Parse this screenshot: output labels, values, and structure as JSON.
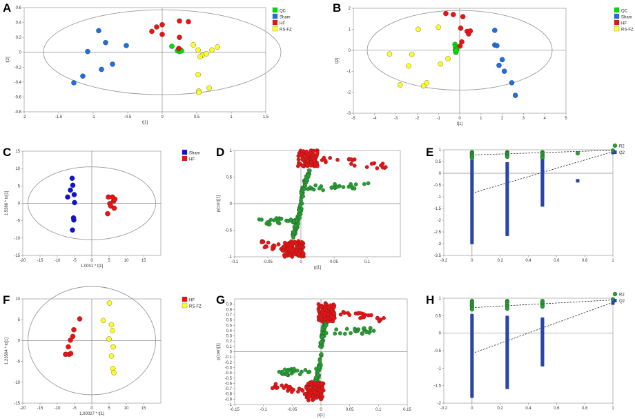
{
  "figure": {
    "panel_letters": [
      "A",
      "B",
      "C",
      "D",
      "E",
      "F",
      "G",
      "H"
    ]
  },
  "colors": {
    "QC": "#00e000",
    "Sham": "#1f6fe0",
    "HF": "#ee1111",
    "RS-FZ": "#ffff22",
    "Sham2": "#1010dd",
    "green": "#22a030",
    "red": "#ee1111",
    "R2": "#22a030",
    "Q2": "#2a45a8"
  },
  "chart_data": [
    {
      "panel": "A",
      "type": "scatter",
      "xlabel": "t[1]",
      "ylabel": "t[2]",
      "xlim": [
        -2,
        1.5
      ],
      "ylim": [
        -0.8,
        0.6
      ],
      "xticks": [
        -2,
        -1.5,
        -1,
        -0.5,
        0,
        0.5,
        1,
        1.5
      ],
      "yticks": [
        -0.8,
        -0.6,
        -0.4,
        -0.2,
        0,
        0.2,
        0.4,
        0.6
      ],
      "ellipse": {
        "cx": 0,
        "cy": 0,
        "rx": 1.72,
        "ry": 0.57
      },
      "legend": [
        "QC",
        "Sham",
        "HF",
        "RS-FZ"
      ],
      "series": [
        {
          "name": "QC",
          "points": [
            [
              0.14,
              0.08
            ],
            [
              0.22,
              0.02
            ],
            [
              0.25,
              0.01
            ],
            [
              0.27,
              0.03
            ],
            [
              0.24,
              0.05
            ],
            [
              0.28,
              0.02
            ]
          ]
        },
        {
          "name": "Sham",
          "points": [
            [
              -1.28,
              -0.41
            ],
            [
              -1.15,
              -0.32
            ],
            [
              -1.08,
              0.01
            ],
            [
              -0.92,
              0.29
            ],
            [
              -0.88,
              -0.23
            ],
            [
              -0.82,
              0.13
            ],
            [
              -0.72,
              -0.16
            ],
            [
              -0.52,
              0.09
            ]
          ]
        },
        {
          "name": "HF",
          "points": [
            [
              -0.15,
              0.28
            ],
            [
              -0.08,
              0.34
            ],
            [
              0.0,
              0.37
            ],
            [
              0.0,
              0.24
            ],
            [
              0.25,
              0.42
            ],
            [
              0.25,
              0.2
            ],
            [
              0.38,
              0.41
            ],
            [
              0.24,
              0.05
            ]
          ]
        },
        {
          "name": "RS-FZ",
          "points": [
            [
              0.45,
              0.1
            ],
            [
              0.52,
              0.03
            ],
            [
              0.58,
              -0.04
            ],
            [
              0.52,
              -0.3
            ],
            [
              0.55,
              -0.06
            ],
            [
              0.64,
              -0.02
            ],
            [
              0.72,
              0.03
            ],
            [
              0.8,
              0.07
            ],
            [
              0.53,
              -0.52
            ],
            [
              0.53,
              -0.54
            ],
            [
              0.68,
              -0.48
            ]
          ]
        }
      ]
    },
    {
      "panel": "B",
      "type": "scatter",
      "xlabel": "t[1]",
      "ylabel": "t[2]",
      "xlim": [
        -5,
        5
      ],
      "ylim": [
        -3,
        2
      ],
      "xticks": [
        -5,
        -4,
        -3,
        -2,
        -1,
        0,
        1,
        2,
        3,
        4,
        5
      ],
      "yticks": [
        -3,
        -2,
        -1,
        0,
        1,
        2
      ],
      "ellipse": {
        "cx": 0,
        "cy": 0,
        "rx": 4.35,
        "ry": 1.9
      },
      "legend": [
        "QC",
        "Sham",
        "HF",
        "RS-FZ"
      ],
      "series": [
        {
          "name": "QC",
          "points": [
            [
              -0.22,
              0.28
            ],
            [
              -0.2,
              0.15
            ],
            [
              -0.2,
              0.0
            ],
            [
              -0.18,
              -0.1
            ],
            [
              -0.15,
              0.05
            ],
            [
              -0.16,
              -0.02
            ]
          ]
        },
        {
          "name": "Sham",
          "points": [
            [
              1.65,
              0.95
            ],
            [
              1.65,
              0.25
            ],
            [
              1.75,
              0.22
            ],
            [
              1.85,
              -0.72
            ],
            [
              2.0,
              -0.45
            ],
            [
              2.1,
              -1.0
            ],
            [
              2.45,
              -1.55
            ],
            [
              2.62,
              -2.15
            ]
          ]
        },
        {
          "name": "HF",
          "points": [
            [
              -0.65,
              1.75
            ],
            [
              -0.3,
              1.7
            ],
            [
              0.15,
              1.6
            ],
            [
              0.05,
              1.05
            ],
            [
              0.1,
              0.4
            ],
            [
              0.35,
              0.9
            ],
            [
              0.42,
              0.78
            ],
            [
              0.5,
              0.92
            ],
            [
              0.02,
              0.2
            ]
          ]
        },
        {
          "name": "RS-FZ",
          "points": [
            [
              -3.3,
              -0.18
            ],
            [
              -2.8,
              -1.65
            ],
            [
              -2.4,
              -0.75
            ],
            [
              -2.25,
              -0.2
            ],
            [
              -1.95,
              1.0
            ],
            [
              -1.7,
              -1.7
            ],
            [
              -1.55,
              -1.55
            ],
            [
              -0.9,
              -0.65
            ],
            [
              -0.55,
              -0.4
            ],
            [
              -1.0,
              1.1
            ]
          ]
        }
      ]
    },
    {
      "panel": "C",
      "type": "scatter",
      "xlabel": "1.0001 * t[1]",
      "ylabel": "1.5386 * to[1]",
      "xlim": [
        -20,
        20
      ],
      "ylim": [
        -15,
        15
      ],
      "xticks": [
        -20,
        -15,
        -10,
        -5,
        0,
        5,
        10,
        15
      ],
      "yticks": [
        -15,
        -10,
        -5,
        0,
        5,
        10,
        15
      ],
      "ellipse": {
        "cx": 0,
        "cy": 0,
        "rx": 18.5,
        "ry": 10.5
      },
      "legend": [
        "Sham",
        "HF"
      ],
      "series": [
        {
          "name": "Sham",
          "points": [
            [
              -7,
              1.8
            ],
            [
              -6.2,
              3.8
            ],
            [
              -5.7,
              7.2
            ],
            [
              -5.5,
              5.2
            ],
            [
              -5.1,
              2.5
            ],
            [
              -5,
              0.2
            ],
            [
              -5.3,
              -4.2
            ],
            [
              -5.2,
              -4.8
            ],
            [
              -5.6,
              -7.7
            ]
          ]
        },
        {
          "name": "HF",
          "points": [
            [
              4.8,
              1.8
            ],
            [
              5.2,
              -0.1
            ],
            [
              5.5,
              -0.8
            ],
            [
              6,
              1.8
            ],
            [
              6.3,
              0.6
            ],
            [
              6.5,
              -1.4
            ],
            [
              6.7,
              1.2
            ],
            [
              4.6,
              -3.0
            ]
          ]
        }
      ]
    },
    {
      "panel": "D",
      "type": "scatter",
      "xlabel": "p[1]",
      "ylabel": "p(corr)[1]",
      "xlim": [
        -0.1,
        0.15
      ],
      "ylim": [
        -1,
        1
      ],
      "xticks": [
        -0.1,
        -0.05,
        0,
        0.05,
        0.1
      ],
      "yticks": [
        -1,
        -0.5,
        0,
        0.5,
        1
      ]
    },
    {
      "panel": "E",
      "type": "scatter",
      "legend": [
        "R2",
        "Q2"
      ],
      "xlim": [
        -0.2,
        1
      ],
      "ylim": [
        -3.5,
        1
      ],
      "xticks": [
        -0.2,
        0,
        0.2,
        0.4,
        0.6,
        0.8,
        1
      ],
      "yticks": [
        -3.5,
        -3,
        -2.5,
        -2,
        -1.5,
        -1,
        -0.5,
        0,
        0.5,
        1
      ],
      "r2_line": [
        [
          0,
          0.78
        ],
        [
          1,
          0.98
        ]
      ],
      "q2_line": [
        [
          0,
          -0.85
        ],
        [
          1,
          0.92
        ]
      ],
      "r2_points": [
        [
          0,
          0.9
        ],
        [
          0,
          0.85
        ],
        [
          0,
          0.8
        ],
        [
          0,
          0.76
        ],
        [
          0,
          0.7
        ],
        [
          0,
          0.65
        ],
        [
          0.25,
          0.9
        ],
        [
          0.25,
          0.85
        ],
        [
          0.25,
          0.8
        ],
        [
          0.25,
          0.74
        ],
        [
          0.25,
          0.7
        ],
        [
          0.5,
          0.9
        ],
        [
          0.5,
          0.85
        ],
        [
          0.5,
          0.78
        ],
        [
          0.5,
          0.72
        ],
        [
          0.5,
          0.66
        ],
        [
          0.75,
          0.85
        ],
        [
          1,
          0.97
        ]
      ],
      "q2_points": [
        [
          0.75,
          -0.32
        ],
        [
          1,
          0.92
        ],
        [
          1,
          0.88
        ]
      ],
      "q2_columns": [
        {
          "x": 0,
          "top": 0.5,
          "bottom": -2.95
        },
        {
          "x": 0.25,
          "top": 0.4,
          "bottom": -2.6
        },
        {
          "x": 0.5,
          "top": 0.6,
          "bottom": -1.35
        }
      ]
    },
    {
      "panel": "F",
      "type": "scatter",
      "xlabel": "1.00027 * t[1]",
      "ylabel": "1.23504 * to[1]",
      "xlim": [
        -20,
        20
      ],
      "ylim": [
        -15,
        10
      ],
      "xticks": [
        -20,
        -15,
        -10,
        -5,
        0,
        5,
        10,
        15
      ],
      "yticks": [
        -15,
        -10,
        -5,
        0,
        5,
        10
      ],
      "ellipse": {
        "cx": 0,
        "cy": 0,
        "rx": 18.5,
        "ry": 13
      },
      "legend": [
        "HF",
        "RS-FZ"
      ],
      "series": [
        {
          "name": "HF",
          "points": [
            [
              -3.5,
              5.2
            ],
            [
              -5.2,
              2.6
            ],
            [
              -5.5,
              1.0
            ],
            [
              -6.2,
              0.1
            ],
            [
              -6.8,
              -1.5
            ],
            [
              -6.6,
              -3.3
            ],
            [
              -7.6,
              -3.3
            ],
            [
              -6.1,
              -3.1
            ]
          ]
        },
        {
          "name": "RS-FZ",
          "points": [
            [
              5.1,
              9.0
            ],
            [
              3.3,
              4.8
            ],
            [
              5.7,
              3.8
            ],
            [
              6.0,
              2.4
            ],
            [
              5.0,
              0.4
            ],
            [
              6.2,
              -1.5
            ],
            [
              5.7,
              -3.7
            ],
            [
              6.1,
              -6.7
            ],
            [
              6.4,
              -7.7
            ]
          ]
        }
      ]
    },
    {
      "panel": "G",
      "type": "scatter",
      "xlabel": "p[1]",
      "ylabel": "p(corr)[1]",
      "xlim": [
        -0.15,
        0.15
      ],
      "ylim": [
        -1,
        1
      ],
      "xticks": [
        -0.15,
        -0.1,
        -0.05,
        0,
        0.05,
        0.1,
        0.15
      ],
      "yticks": [
        -1,
        -0.9,
        -0.8,
        -0.7,
        -0.6,
        -0.5,
        -0.4,
        -0.3,
        -0.2,
        -0.1,
        0,
        0.1,
        0.2,
        0.3,
        0.4,
        0.5,
        0.6,
        0.7,
        0.8,
        0.9
      ]
    },
    {
      "panel": "H",
      "type": "scatter",
      "legend": [
        "R2",
        "Q2"
      ],
      "xlim": [
        -0.2,
        1
      ],
      "ylim": [
        -2,
        1
      ],
      "xticks": [
        -0.2,
        0,
        0.2,
        0.4,
        0.6,
        0.8,
        1
      ],
      "yticks": [
        -2,
        -1.5,
        -1,
        -0.5,
        0,
        0.5,
        1
      ],
      "r2_line": [
        [
          0,
          0.73
        ],
        [
          1,
          0.95
        ]
      ],
      "q2_line": [
        [
          0,
          -0.58
        ],
        [
          1,
          0.88
        ]
      ],
      "r2_points": [
        [
          0,
          0.92
        ],
        [
          0,
          0.88
        ],
        [
          0,
          0.84
        ],
        [
          0,
          0.8
        ],
        [
          0,
          0.76
        ],
        [
          0,
          0.72
        ],
        [
          0,
          0.68
        ],
        [
          0.25,
          0.92
        ],
        [
          0.25,
          0.88
        ],
        [
          0.25,
          0.82
        ],
        [
          0.25,
          0.76
        ],
        [
          0.25,
          0.7
        ],
        [
          0.5,
          0.92
        ],
        [
          0.5,
          0.86
        ],
        [
          0.5,
          0.8
        ],
        [
          0.5,
          0.76
        ],
        [
          1,
          0.97
        ]
      ],
      "q2_points": [
        [
          1,
          0.9
        ],
        [
          1,
          0.86
        ]
      ],
      "q2_columns": [
        {
          "x": 0,
          "top": 0.5,
          "bottom": -1.8
        },
        {
          "x": 0.25,
          "top": 0.45,
          "bottom": -1.55
        },
        {
          "x": 0.5,
          "top": 0.4,
          "bottom": -0.9
        }
      ]
    }
  ]
}
